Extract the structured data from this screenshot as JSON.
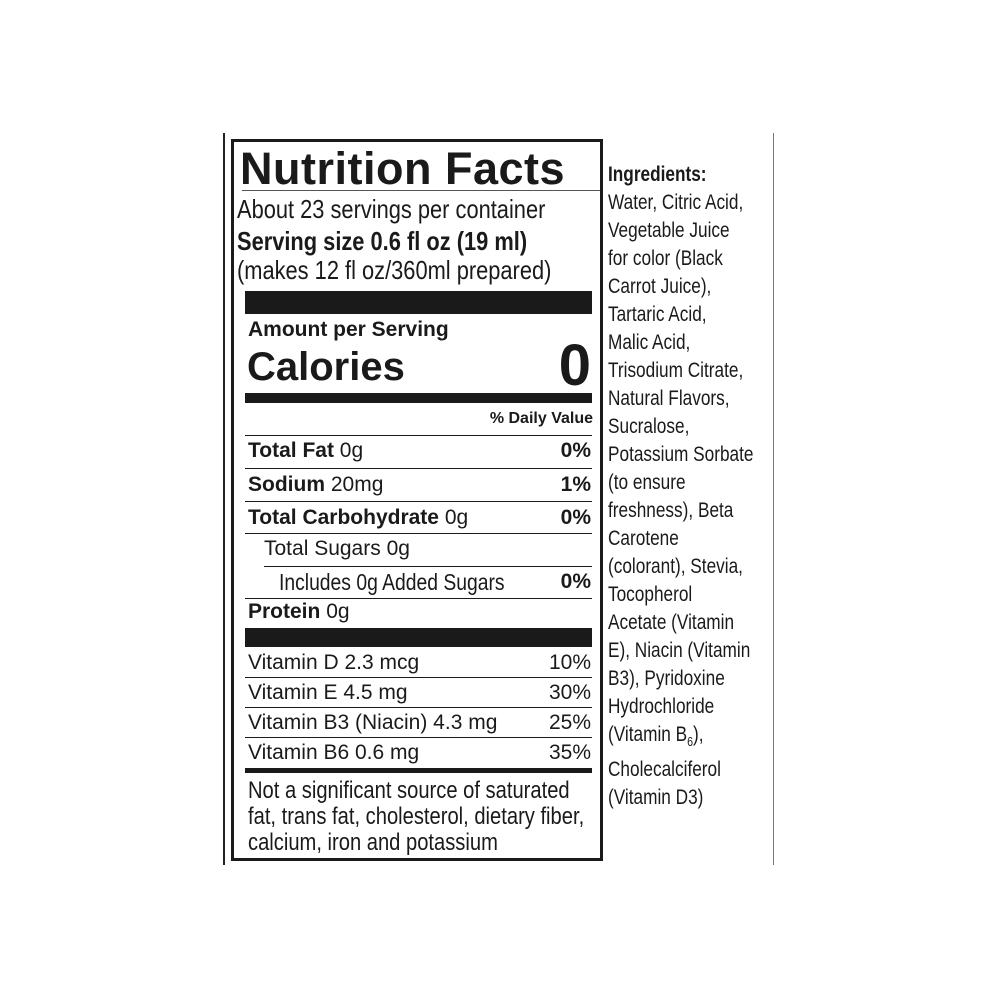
{
  "label": {
    "title": "Nutrition Facts",
    "servings": "About 23 servings per container",
    "serving_size_label": "Serving size",
    "serving_size_value": "0.6 fl oz (19 ml)",
    "prepared": "(makes 12 fl oz/360ml prepared)",
    "amount_per_serving": "Amount per Serving",
    "calories_label": "Calories",
    "calories_value": "0",
    "daily_value_header": "% Daily Value",
    "nutrients": [
      {
        "name": "Total Fat",
        "amount": "0g",
        "dv": "0%"
      },
      {
        "name": "Sodium",
        "amount": "20mg",
        "dv": "1%"
      },
      {
        "name": "Total Carbohydrate",
        "amount": "0g",
        "dv": "0%"
      },
      {
        "name": "Total Sugars 0g",
        "amount": "",
        "dv": ""
      },
      {
        "name": "Includes 0g Added Sugars",
        "amount": "",
        "dv": "0%"
      },
      {
        "name": "Protein",
        "amount": "0g",
        "dv": ""
      }
    ],
    "vitamins": [
      {
        "name": "Vitamin D 2.3 mcg",
        "dv": "10%"
      },
      {
        "name": "Vitamin E 4.5 mg",
        "dv": "30%"
      },
      {
        "name": "Vitamin B3 (Niacin) 4.3 mg",
        "dv": "25%"
      },
      {
        "name": "Vitamin B6 0.6 mg",
        "dv": "35%"
      }
    ],
    "footnote": [
      "Not a significant source of saturated",
      "fat, trans fat, cholesterol, dietary fiber,",
      "calcium, iron and potassium"
    ]
  },
  "ingredients": {
    "heading": "Ingredients:",
    "lines": [
      "Water, Citric Acid,",
      "Vegetable Juice",
      "for color (Black",
      "Carrot Juice),",
      "Tartaric Acid,",
      "Malic Acid,",
      "Trisodium Citrate,",
      "Natural Flavors,",
      "Sucralose,",
      "Potassium Sorbate",
      "(to ensure",
      "freshness), Beta",
      "Carotene",
      "(colorant), Stevia,",
      "Tocopherol",
      "Acetate (Vitamin",
      "E), Niacin (Vitamin",
      "B3), Pyridoxine",
      "Hydrochloride"
    ],
    "b6_line": {
      "pre": "(Vitamin B",
      "sub": "6",
      "post": "),"
    },
    "tail_lines": [
      "Cholecalciferol",
      "(Vitamin D3)"
    ]
  }
}
